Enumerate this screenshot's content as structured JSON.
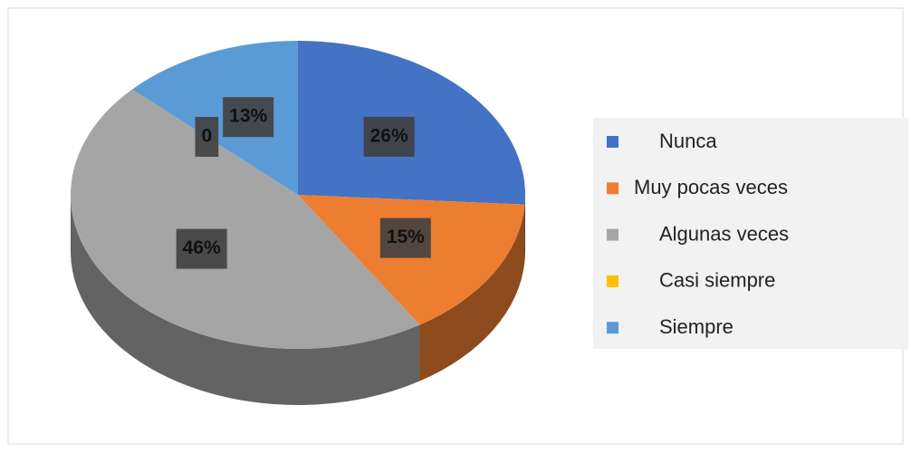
{
  "chart_data": {
    "type": "pie",
    "categories": [
      "Nunca",
      "Muy pocas veces",
      "Algunas veces",
      "Casi siempre",
      "Siempre"
    ],
    "values": [
      26,
      15,
      46,
      0,
      13
    ],
    "value_labels": [
      "26%",
      "15%",
      "46%",
      "0",
      "13%"
    ],
    "colors": [
      "#4472c4",
      "#ed7d31",
      "#a5a5a5",
      "#ffc000",
      "#5b9bd5"
    ],
    "legend": "right"
  }
}
